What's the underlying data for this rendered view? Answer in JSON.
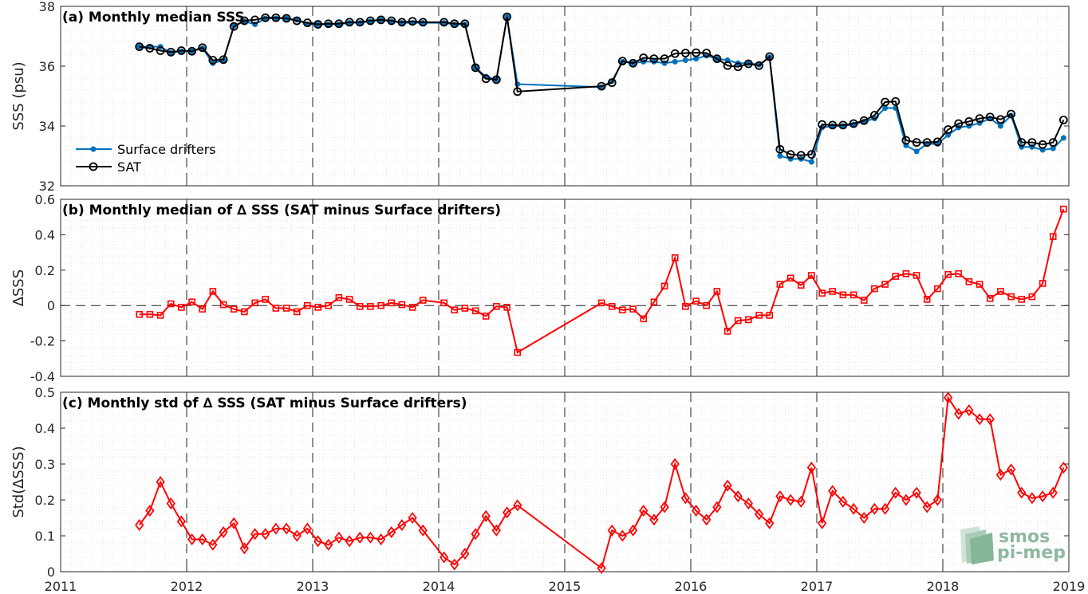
{
  "chart_data": [
    {
      "type": "line",
      "title": "(a) Monthly median SSS",
      "ylabel": "SSS (psu)",
      "ylim": [
        32,
        38
      ],
      "yticks": [
        "32",
        "34",
        "36",
        "38"
      ],
      "xlim": [
        2011,
        2019
      ],
      "xticks": [
        "2011",
        "2012",
        "2013",
        "2014",
        "2015",
        "2016",
        "2017",
        "2018",
        "2019"
      ],
      "grid": "minor-dotted",
      "legend": "lower-left",
      "series": [
        {
          "name": "Surface drifters",
          "color": "#0072bd",
          "marker": "dot",
          "x": [
            2011.625,
            2011.708,
            2011.792,
            2011.875,
            2011.958,
            2012.042,
            2012.125,
            2012.208,
            2012.292,
            2012.375,
            2012.458,
            2012.542,
            2012.625,
            2012.708,
            2012.792,
            2012.875,
            2012.958,
            2013.042,
            2013.125,
            2013.208,
            2013.292,
            2013.375,
            2013.458,
            2013.542,
            2013.625,
            2013.708,
            2013.792,
            2013.875,
            2014.042,
            2014.125,
            2014.208,
            2014.292,
            2014.375,
            2014.458,
            2014.542,
            2014.625,
            2015.292,
            2015.375,
            2015.458,
            2015.542,
            2015.625,
            2015.708,
            2015.792,
            2015.875,
            2015.958,
            2016.042,
            2016.125,
            2016.208,
            2016.292,
            2016.375,
            2016.458,
            2016.542,
            2016.625,
            2016.708,
            2016.792,
            2016.875,
            2016.958,
            2017.042,
            2017.125,
            2017.208,
            2017.292,
            2017.375,
            2017.458,
            2017.542,
            2017.625,
            2017.708,
            2017.792,
            2017.875,
            2017.958,
            2018.042,
            2018.125,
            2018.208,
            2018.292,
            2018.375,
            2018.458,
            2018.542,
            2018.625,
            2018.708,
            2018.792,
            2018.875,
            2018.958
          ],
          "y": [
            36.65,
            36.65,
            36.65,
            36.45,
            36.5,
            36.5,
            36.6,
            36.1,
            36.2,
            37.35,
            37.5,
            37.4,
            37.6,
            37.6,
            37.6,
            37.55,
            37.4,
            37.4,
            37.4,
            37.4,
            37.45,
            37.45,
            37.5,
            37.55,
            37.5,
            37.45,
            37.45,
            37.45,
            37.45,
            37.4,
            37.4,
            35.95,
            35.65,
            35.55,
            37.65,
            35.4,
            35.3,
            35.5,
            36.15,
            36.1,
            36.15,
            36.15,
            36.1,
            36.15,
            36.2,
            36.25,
            36.35,
            36.25,
            36.2,
            36.1,
            36.1,
            36.05,
            36.3,
            33.0,
            32.9,
            32.9,
            32.8,
            33.95,
            34.0,
            34.0,
            34.05,
            34.15,
            34.25,
            34.6,
            34.6,
            33.35,
            33.15,
            33.4,
            33.4,
            33.7,
            33.95,
            34.0,
            34.1,
            34.25,
            34.0,
            34.35,
            33.3,
            33.3,
            33.2,
            33.25,
            33.6
          ]
        },
        {
          "name": "SAT",
          "color": "#000000",
          "marker": "circle",
          "x": [
            2011.625,
            2011.708,
            2011.792,
            2011.875,
            2011.958,
            2012.042,
            2012.125,
            2012.208,
            2012.292,
            2012.375,
            2012.458,
            2012.542,
            2012.625,
            2012.708,
            2012.792,
            2012.875,
            2012.958,
            2013.042,
            2013.125,
            2013.208,
            2013.292,
            2013.375,
            2013.458,
            2013.542,
            2013.625,
            2013.708,
            2013.792,
            2013.875,
            2014.042,
            2014.125,
            2014.208,
            2014.292,
            2014.375,
            2014.458,
            2014.542,
            2014.625,
            2015.292,
            2015.375,
            2015.458,
            2015.542,
            2015.625,
            2015.708,
            2015.792,
            2015.875,
            2015.958,
            2016.042,
            2016.125,
            2016.208,
            2016.292,
            2016.375,
            2016.458,
            2016.542,
            2016.625,
            2016.708,
            2016.792,
            2016.875,
            2016.958,
            2017.042,
            2017.125,
            2017.208,
            2017.292,
            2017.375,
            2017.458,
            2017.542,
            2017.625,
            2017.708,
            2017.792,
            2017.875,
            2017.958,
            2018.042,
            2018.125,
            2018.208,
            2018.292,
            2018.375,
            2018.458,
            2018.542,
            2018.625,
            2018.708,
            2018.792,
            2018.875,
            2018.958
          ],
          "y": [
            36.65,
            36.6,
            36.52,
            36.47,
            36.52,
            36.5,
            36.62,
            36.2,
            36.22,
            37.33,
            37.52,
            37.55,
            37.62,
            37.62,
            37.6,
            37.52,
            37.45,
            37.4,
            37.42,
            37.42,
            37.47,
            37.47,
            37.52,
            37.55,
            37.52,
            37.47,
            37.5,
            37.47,
            37.47,
            37.42,
            37.42,
            35.95,
            35.58,
            35.55,
            37.65,
            35.15,
            35.33,
            35.45,
            36.17,
            36.1,
            36.28,
            36.25,
            36.25,
            36.42,
            36.44,
            36.45,
            36.44,
            36.25,
            36.02,
            35.98,
            36.08,
            36.02,
            36.32,
            33.22,
            33.05,
            33.02,
            33.05,
            34.05,
            34.03,
            34.03,
            34.08,
            34.18,
            34.36,
            34.8,
            34.82,
            33.52,
            33.45,
            33.45,
            33.47,
            33.88,
            34.08,
            34.15,
            34.25,
            34.3,
            34.22,
            34.4,
            33.45,
            33.45,
            33.38,
            33.45,
            34.2
          ]
        }
      ]
    },
    {
      "type": "line",
      "title": "(b) Monthly median of ∆ SSS (SAT minus Surface drifters)",
      "ylabel": "∆SSS",
      "ylim": [
        -0.4,
        0.6
      ],
      "yticks": [
        "-0.4",
        "-0.2",
        "0",
        "0.2",
        "0.4",
        "0.6"
      ],
      "xlim": [
        2011,
        2019
      ],
      "zero_line": "dashed",
      "series": [
        {
          "color": "#ff0000",
          "marker": "square",
          "x": [
            2011.625,
            2011.708,
            2011.792,
            2011.875,
            2011.958,
            2012.042,
            2012.125,
            2012.208,
            2012.292,
            2012.375,
            2012.458,
            2012.542,
            2012.625,
            2012.708,
            2012.792,
            2012.875,
            2012.958,
            2013.042,
            2013.125,
            2013.208,
            2013.292,
            2013.375,
            2013.458,
            2013.542,
            2013.625,
            2013.708,
            2013.792,
            2013.875,
            2014.042,
            2014.125,
            2014.208,
            2014.292,
            2014.375,
            2014.458,
            2014.542,
            2014.625,
            2015.292,
            2015.375,
            2015.458,
            2015.542,
            2015.625,
            2015.708,
            2015.792,
            2015.875,
            2015.958,
            2016.042,
            2016.125,
            2016.208,
            2016.292,
            2016.375,
            2016.458,
            2016.542,
            2016.625,
            2016.708,
            2016.792,
            2016.875,
            2016.958,
            2017.042,
            2017.125,
            2017.208,
            2017.292,
            2017.375,
            2017.458,
            2017.542,
            2017.625,
            2017.708,
            2017.792,
            2017.875,
            2017.958,
            2018.042,
            2018.125,
            2018.208,
            2018.292,
            2018.375,
            2018.458,
            2018.542,
            2018.625,
            2018.708,
            2018.792,
            2018.875,
            2018.958
          ],
          "y": [
            -0.05,
            -0.05,
            -0.055,
            0.01,
            -0.01,
            0.02,
            -0.02,
            0.08,
            0.005,
            -0.02,
            -0.035,
            0.015,
            0.035,
            -0.015,
            -0.015,
            -0.035,
            0.0,
            -0.01,
            0.0,
            0.045,
            0.035,
            -0.005,
            -0.005,
            0.0,
            0.015,
            0.005,
            -0.01,
            0.03,
            0.015,
            -0.025,
            -0.015,
            -0.03,
            -0.06,
            -0.005,
            -0.01,
            -0.265,
            0.015,
            -0.005,
            -0.025,
            -0.02,
            -0.075,
            0.02,
            0.11,
            0.27,
            -0.005,
            0.025,
            0.0,
            0.08,
            -0.145,
            -0.085,
            -0.08,
            -0.055,
            -0.055,
            0.12,
            0.155,
            0.115,
            0.17,
            0.07,
            0.08,
            0.06,
            0.06,
            0.03,
            0.095,
            0.12,
            0.165,
            0.18,
            0.17,
            0.035,
            0.095,
            0.175,
            0.18,
            0.135,
            0.12,
            0.04,
            0.08,
            0.05,
            0.035,
            0.05,
            0.125,
            0.39,
            0.545
          ]
        }
      ]
    },
    {
      "type": "line",
      "title": "(c) Monthly std of ∆ SSS (SAT minus Surface drifters)",
      "ylabel": "Std(∆SSS)",
      "ylim": [
        0,
        0.5
      ],
      "yticks": [
        "0",
        "0.1",
        "0.2",
        "0.3",
        "0.4",
        "0.5"
      ],
      "xlim": [
        2011,
        2019
      ],
      "series": [
        {
          "color": "#ff0000",
          "marker": "diamond",
          "x": [
            2011.625,
            2011.708,
            2011.792,
            2011.875,
            2011.958,
            2012.042,
            2012.125,
            2012.208,
            2012.292,
            2012.375,
            2012.458,
            2012.542,
            2012.625,
            2012.708,
            2012.792,
            2012.875,
            2012.958,
            2013.042,
            2013.125,
            2013.208,
            2013.292,
            2013.375,
            2013.458,
            2013.542,
            2013.625,
            2013.708,
            2013.792,
            2013.875,
            2014.042,
            2014.125,
            2014.208,
            2014.292,
            2014.375,
            2014.458,
            2014.542,
            2014.625,
            2015.292,
            2015.375,
            2015.458,
            2015.542,
            2015.625,
            2015.708,
            2015.792,
            2015.875,
            2015.958,
            2016.042,
            2016.125,
            2016.208,
            2016.292,
            2016.375,
            2016.458,
            2016.542,
            2016.625,
            2016.708,
            2016.792,
            2016.875,
            2016.958,
            2017.042,
            2017.125,
            2017.208,
            2017.292,
            2017.375,
            2017.458,
            2017.542,
            2017.625,
            2017.708,
            2017.792,
            2017.875,
            2017.958,
            2018.042,
            2018.125,
            2018.208,
            2018.292,
            2018.375,
            2018.458,
            2018.542,
            2018.625,
            2018.708,
            2018.792,
            2018.875,
            2018.958
          ],
          "y": [
            0.13,
            0.17,
            0.25,
            0.19,
            0.14,
            0.09,
            0.09,
            0.075,
            0.11,
            0.135,
            0.065,
            0.105,
            0.105,
            0.12,
            0.12,
            0.1,
            0.12,
            0.085,
            0.075,
            0.095,
            0.085,
            0.095,
            0.095,
            0.09,
            0.11,
            0.13,
            0.15,
            0.115,
            0.04,
            0.02,
            0.05,
            0.105,
            0.155,
            0.115,
            0.165,
            0.185,
            0.01,
            0.115,
            0.1,
            0.115,
            0.17,
            0.145,
            0.18,
            0.3,
            0.205,
            0.17,
            0.145,
            0.18,
            0.24,
            0.21,
            0.19,
            0.16,
            0.135,
            0.21,
            0.2,
            0.195,
            0.29,
            0.135,
            0.225,
            0.195,
            0.175,
            0.15,
            0.175,
            0.175,
            0.22,
            0.2,
            0.22,
            0.18,
            0.2,
            0.485,
            0.44,
            0.45,
            0.425,
            0.425,
            0.27,
            0.285,
            0.22,
            0.205,
            0.21,
            0.22,
            0.29
          ]
        }
      ]
    }
  ],
  "watermark": {
    "line1": "smos",
    "line2": "pi-mep",
    "color": "#8fb8a0"
  }
}
